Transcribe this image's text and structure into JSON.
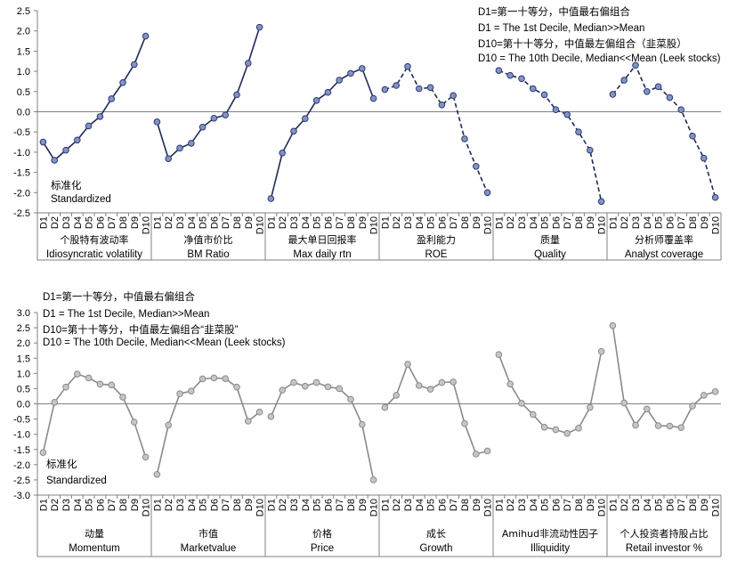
{
  "chart_data": [
    {
      "type": "line",
      "name": "top-panel",
      "ylim": [
        -2.5,
        2.5
      ],
      "yticks": [
        "2.5",
        "2.0",
        "1.5",
        "1.0",
        "0.5",
        "0.0",
        "-0.5",
        "-1.0",
        "-1.5",
        "-2.0",
        "-2.5"
      ],
      "decile_labels": [
        "D1",
        "D2",
        "D3",
        "D4",
        "D5",
        "D6",
        "D7",
        "D8",
        "D9",
        "D10"
      ],
      "legend": [
        "D1=第一十等分，中值最右偏组合",
        "D1 = The 1st Decile, Median>>Mean",
        "D10=第十十等分，中值最左偏组合（韭菜股）",
        "D10 = The 10th Decile, Median<<Mean (Leek stocks)"
      ],
      "note_zh": "标准化",
      "note_en": "Standardized",
      "series": [
        {
          "name_zh": "个股特有波动率",
          "name_en": "Idiosyncratic volatility",
          "style": "solid",
          "values": [
            -0.75,
            -1.2,
            -0.95,
            -0.7,
            -0.35,
            -0.12,
            0.32,
            0.72,
            1.17,
            1.87
          ]
        },
        {
          "name_zh": "净值市价比",
          "name_en": "BM Ratio",
          "style": "solid",
          "values": [
            -0.25,
            -1.16,
            -0.9,
            -0.78,
            -0.38,
            -0.16,
            -0.08,
            0.42,
            1.2,
            2.09
          ]
        },
        {
          "name_zh": "最大单日回报率",
          "name_en": "Max daily rtn",
          "style": "solid",
          "values": [
            -2.15,
            -1.02,
            -0.48,
            -0.17,
            0.28,
            0.48,
            0.78,
            0.95,
            1.07,
            0.33
          ]
        },
        {
          "name_zh": "盈利能力",
          "name_en": "ROE",
          "style": "dashed",
          "values": [
            0.55,
            0.65,
            1.12,
            0.57,
            0.6,
            0.17,
            0.4,
            -0.67,
            -1.35,
            -2.0
          ]
        },
        {
          "name_zh": "质量",
          "name_en": "Quality",
          "style": "dashed",
          "values": [
            1.02,
            0.9,
            0.82,
            0.57,
            0.42,
            0.05,
            -0.07,
            -0.5,
            -0.95,
            -2.22
          ]
        },
        {
          "name_zh": "分析师覆盖率",
          "name_en": "Analyst coverage",
          "style": "dashed",
          "values": [
            0.43,
            0.78,
            1.15,
            0.5,
            0.62,
            0.35,
            0.05,
            -0.6,
            -1.15,
            -2.12
          ]
        }
      ]
    },
    {
      "type": "line",
      "name": "bottom-panel",
      "ylim": [
        -3.0,
        3.0
      ],
      "yticks": [
        "3.0",
        "2.5",
        "2.0",
        "1.5",
        "1.0",
        "0.5",
        "0.0",
        "-0.5",
        "-1.0",
        "-1.5",
        "-2.0",
        "-2.5",
        "-3.0"
      ],
      "decile_labels": [
        "D1",
        "D2",
        "D3",
        "D4",
        "D5",
        "D6",
        "D7",
        "D8",
        "D9",
        "D10"
      ],
      "legend": [
        "D1=第一十等分，中值最右偏组合",
        "D1 = The 1st Decile, Median>>Mean",
        "D10=第十十等分，中值最左偏组合“韭菜股”",
        "D10 = The 10th Decile, Median<<Mean  (Leek stocks)"
      ],
      "note_zh": "标准化",
      "note_en": "Standardized",
      "series": [
        {
          "name_zh": "动量",
          "name_en": "Momentum",
          "style": "solid",
          "values": [
            -1.6,
            0.05,
            0.55,
            0.98,
            0.85,
            0.65,
            0.62,
            0.22,
            -0.6,
            -1.75
          ]
        },
        {
          "name_zh": "市值",
          "name_en": "Marketvalue",
          "style": "solid",
          "values": [
            -2.32,
            -0.7,
            0.33,
            0.42,
            0.82,
            0.85,
            0.83,
            0.55,
            -0.57,
            -0.27
          ]
        },
        {
          "name_zh": "价格",
          "name_en": "Price",
          "style": "solid",
          "values": [
            -0.42,
            0.45,
            0.7,
            0.58,
            0.7,
            0.56,
            0.5,
            0.15,
            -0.68,
            -2.5
          ]
        },
        {
          "name_zh": "成长",
          "name_en": "Growth",
          "style": "solid",
          "values": [
            -0.12,
            0.28,
            1.3,
            0.6,
            0.48,
            0.7,
            0.72,
            -0.65,
            -1.65,
            -1.55
          ]
        },
        {
          "name_zh": "Amihud非流动性因子",
          "name_en": "Illiquidity",
          "style": "solid",
          "values": [
            1.62,
            0.65,
            0.02,
            -0.35,
            -0.77,
            -0.85,
            -0.97,
            -0.8,
            -0.12,
            1.72
          ]
        },
        {
          "name_zh": "个人投资者持股占比",
          "name_en": "Retail investor %",
          "style": "solid",
          "values": [
            2.57,
            0.03,
            -0.7,
            -0.17,
            -0.72,
            -0.73,
            -0.78,
            -0.07,
            0.28,
            0.4
          ]
        }
      ]
    }
  ]
}
